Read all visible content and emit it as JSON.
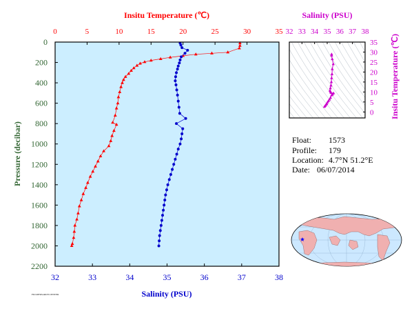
{
  "chart_data": [
    {
      "type": "line",
      "title": "",
      "y_axis": {
        "label": "Pressure (decibar)",
        "range": [
          0,
          2200
        ],
        "inverted": true,
        "ticks": [
          0,
          200,
          400,
          600,
          800,
          1000,
          1200,
          1400,
          1600,
          1800,
          2000,
          2200
        ]
      },
      "top_axis": {
        "label": "Insitu Temperature (℃)",
        "range": [
          0,
          35
        ],
        "ticks": [
          0,
          5,
          10,
          15,
          20,
          25,
          30,
          35
        ]
      },
      "bottom_axis": {
        "label": "Salinity (PSU)",
        "range": [
          32,
          38
        ],
        "ticks": [
          32,
          33,
          34,
          35,
          36,
          37,
          38
        ]
      },
      "background": "#cceeff",
      "series": [
        {
          "color": "#ff0000",
          "marker": "triangle",
          "axis": "top",
          "points": [
            [
              28.9,
              10
            ],
            [
              28.9,
              35
            ],
            [
              28.8,
              60
            ],
            [
              27.0,
              100
            ],
            [
              24.5,
              110
            ],
            [
              22.0,
              120
            ],
            [
              20.0,
              135
            ],
            [
              18.0,
              150
            ],
            [
              16.5,
              165
            ],
            [
              15.0,
              180
            ],
            [
              14.0,
              195
            ],
            [
              13.3,
              210
            ],
            [
              12.8,
              230
            ],
            [
              12.3,
              255
            ],
            [
              11.9,
              280
            ],
            [
              11.5,
              310
            ],
            [
              11.0,
              340
            ],
            [
              10.7,
              370
            ],
            [
              10.5,
              400
            ],
            [
              10.3,
              440
            ],
            [
              10.1,
              490
            ],
            [
              9.9,
              540
            ],
            [
              9.8,
              600
            ],
            [
              9.6,
              650
            ],
            [
              9.4,
              720
            ],
            [
              9.0,
              790
            ],
            [
              9.6,
              810
            ],
            [
              9.2,
              870
            ],
            [
              8.9,
              920
            ],
            [
              8.7,
              970
            ],
            [
              8.4,
              1020
            ],
            [
              7.6,
              1070
            ],
            [
              7.1,
              1120
            ],
            [
              6.7,
              1170
            ],
            [
              6.3,
              1220
            ],
            [
              5.9,
              1270
            ],
            [
              5.5,
              1320
            ],
            [
              5.1,
              1380
            ],
            [
              4.8,
              1430
            ],
            [
              4.4,
              1490
            ],
            [
              4.1,
              1550
            ],
            [
              3.8,
              1610
            ],
            [
              3.6,
              1680
            ],
            [
              3.4,
              1740
            ],
            [
              3.1,
              1800
            ],
            [
              3.0,
              1860
            ],
            [
              2.9,
              1920
            ],
            [
              2.7,
              1980
            ],
            [
              2.6,
              2000
            ]
          ]
        },
        {
          "color": "#0000cc",
          "marker": "circle",
          "axis": "bottom",
          "points": [
            [
              35.35,
              10
            ],
            [
              35.37,
              30
            ],
            [
              35.4,
              55
            ],
            [
              35.55,
              80
            ],
            [
              35.48,
              110
            ],
            [
              35.38,
              145
            ],
            [
              35.35,
              175
            ],
            [
              35.33,
              205
            ],
            [
              35.3,
              235
            ],
            [
              35.28,
              265
            ],
            [
              35.25,
              300
            ],
            [
              35.23,
              340
            ],
            [
              35.22,
              380
            ],
            [
              35.24,
              420
            ],
            [
              35.26,
              470
            ],
            [
              35.28,
              520
            ],
            [
              35.3,
              580
            ],
            [
              35.32,
              640
            ],
            [
              35.34,
              700
            ],
            [
              35.5,
              750
            ],
            [
              35.25,
              800
            ],
            [
              35.42,
              850
            ],
            [
              35.4,
              900
            ],
            [
              35.38,
              950
            ],
            [
              35.35,
              1000
            ],
            [
              35.3,
              1050
            ],
            [
              35.26,
              1100
            ],
            [
              35.22,
              1150
            ],
            [
              35.18,
              1200
            ],
            [
              35.14,
              1250
            ],
            [
              35.1,
              1300
            ],
            [
              35.06,
              1350
            ],
            [
              35.02,
              1400
            ],
            [
              34.99,
              1450
            ],
            [
              34.96,
              1500
            ],
            [
              34.94,
              1550
            ],
            [
              34.92,
              1600
            ],
            [
              34.9,
              1650
            ],
            [
              34.88,
              1700
            ],
            [
              34.86,
              1750
            ],
            [
              34.84,
              1800
            ],
            [
              34.82,
              1850
            ],
            [
              34.8,
              1900
            ],
            [
              34.79,
              1950
            ],
            [
              34.78,
              2000
            ]
          ]
        }
      ]
    },
    {
      "type": "scatter",
      "title": "",
      "x_axis": {
        "label": "Salinity (PSU)",
        "range": [
          32,
          38
        ],
        "ticks": [
          32,
          33,
          34,
          35,
          36,
          37,
          38
        ]
      },
      "y_axis": {
        "label": "Insitu Temperature (℃)",
        "range": [
          -3,
          35
        ],
        "ticks": [
          0,
          5,
          10,
          15,
          20,
          25,
          30,
          35
        ]
      },
      "series": [
        {
          "color": "#cc00cc",
          "points": [
            [
              35.35,
              28.9
            ],
            [
              35.35,
              28.3
            ],
            [
              35.4,
              26.5
            ],
            [
              35.48,
              24.0
            ],
            [
              35.4,
              21.5
            ],
            [
              35.38,
              19.0
            ],
            [
              35.35,
              17.0
            ],
            [
              35.33,
              15.0
            ],
            [
              35.3,
              13.3
            ],
            [
              35.25,
              11.9
            ],
            [
              35.22,
              10.7
            ],
            [
              35.26,
              10.1
            ],
            [
              35.3,
              9.6
            ],
            [
              35.5,
              9.4
            ],
            [
              35.42,
              8.8
            ],
            [
              35.35,
              8.4
            ],
            [
              35.26,
              7.1
            ],
            [
              35.18,
              6.3
            ],
            [
              35.1,
              5.5
            ],
            [
              35.02,
              4.8
            ],
            [
              34.96,
              4.1
            ],
            [
              34.9,
              3.6
            ],
            [
              34.84,
              3.1
            ],
            [
              34.78,
              2.6
            ]
          ]
        }
      ]
    }
  ],
  "info": {
    "float_label": "Float:",
    "float_value": "1573",
    "profile_label": "Profile:",
    "profile_value": "179",
    "location_label": "Location:",
    "location_value": "4.7°N  51.2°E",
    "date_label": "Date:",
    "date_value": "06/07/2014"
  },
  "map": {
    "water_color": "#cce8ff",
    "land_color": "#f0b0b0",
    "marker_color": "#0000ff"
  },
  "footer": {
    "credit": "FIO RESEARCH CENTER"
  }
}
